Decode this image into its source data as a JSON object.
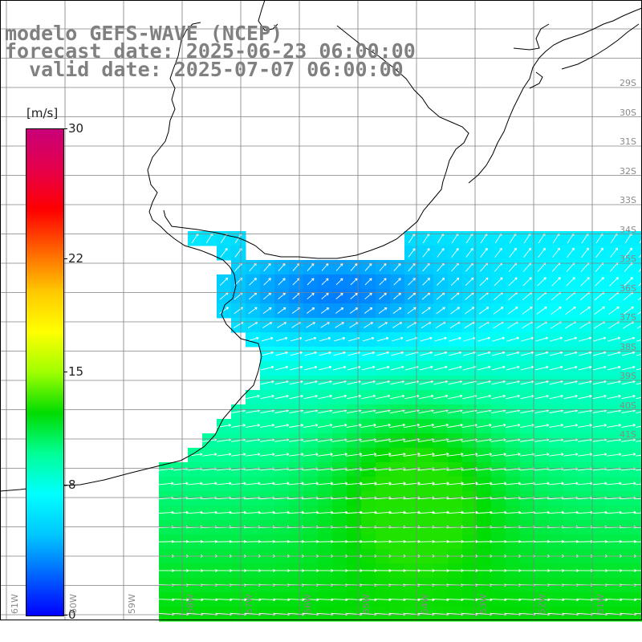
{
  "title": {
    "line1": "modelo GEFS-WAVE (NCEP)",
    "line2": "forecast date: 2025-06-23 06:00:00",
    "line3": "  valid date: 2025-07-07 06:00:00"
  },
  "legend": {
    "unit": "[m/s]",
    "min": 0,
    "max": 30,
    "ticks": [
      {
        "label": "30",
        "value": 30
      },
      {
        "label": "22",
        "value": 22
      },
      {
        "label": "15",
        "value": 15
      },
      {
        "label": "8",
        "value": 8
      },
      {
        "label": "0",
        "value": 0
      }
    ],
    "colors": [
      "#0000ff",
      "#0064ff",
      "#00c8ff",
      "#00ffff",
      "#00ff96",
      "#00dc00",
      "#a0ff00",
      "#ffff00",
      "#ffc800",
      "#ff6400",
      "#ff0000",
      "#e6004b",
      "#c80078"
    ]
  },
  "map": {
    "lat_labels": [
      "29S",
      "30S",
      "31S",
      "32S",
      "33S",
      "34S",
      "35S",
      "36S",
      "37S",
      "38S",
      "39S",
      "40S",
      "41S"
    ],
    "lon_labels": [
      "61W",
      "60W",
      "59W",
      "58W",
      "57W",
      "56W",
      "55W",
      "54W",
      "53W",
      "52W",
      "51W"
    ],
    "arrow_color": "#ffffff",
    "coast_color": "#000000",
    "grid_color": "#808080"
  }
}
